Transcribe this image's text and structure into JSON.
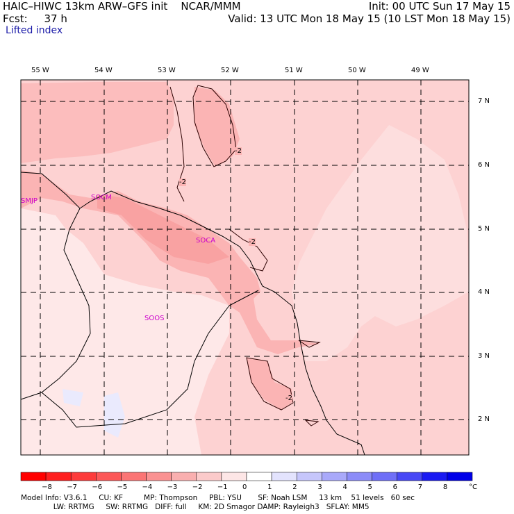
{
  "header": {
    "model_line": "HAIC–HIWC 13km ARW–GFS init    NCAR/MMM",
    "init_line": "Init: 00 UTC Sun 17 May 15",
    "fcst_line": "Fcst:     37 h",
    "valid_line": "Valid: 13 UTC Mon 18 May 15 (10 LST Mon 18 May 15)",
    "field_name": "Lifted index"
  },
  "map": {
    "lon_labels": [
      "55 W",
      "54 W",
      "53 W",
      "52 W",
      "51 W",
      "50 W",
      "49 W"
    ],
    "lat_labels": [
      "7 N",
      "6 N",
      "5 N",
      "4 N",
      "3 N",
      "2 N"
    ],
    "stations": [
      "SMJP",
      "SOCM",
      "SOCA",
      "SOOS"
    ],
    "contour_labels": [
      "-2",
      "-2",
      "-2",
      "-2"
    ],
    "colors": {
      "shade_minus1": "#fdd2d2",
      "shade_minus2": "#fbb4b4",
      "shade_minus3": "#f89696",
      "shade_zero": "#fee8e8",
      "shade_plus1": "#eaeafd",
      "station": "#cc00cc"
    }
  },
  "colorbar": {
    "ticks": [
      "−8",
      "−7",
      "−6",
      "−5",
      "−4",
      "−3",
      "−2",
      "−1",
      "0",
      "1",
      "2",
      "3",
      "4",
      "5",
      "6",
      "7",
      "8"
    ],
    "unit": "°C",
    "colors": [
      "#ff0000",
      "#fe1f1f",
      "#fd3b3b",
      "#fc5858",
      "#fb7575",
      "#fa9292",
      "#f9afaf",
      "#fbcaca",
      "#fde6e6",
      "#ffffff",
      "#e3e3fd",
      "#c6c6fb",
      "#a9a9fa",
      "#8c8cf8",
      "#6f6ff7",
      "#4848f5",
      "#1a1af2",
      "#0000e8"
    ]
  },
  "footer": {
    "line1": "Model Info: V3.6.1     CU: KF         MP: Thompson     PBL: YSU       SF: Noah LSM     13 km    51 levels   60 sec",
    "line2": "              LW: RRTMG     SW: RRTMG   DIFF: full     KM: 2D Smagor DAMP: Rayleigh3   SFLAY: MM5"
  }
}
